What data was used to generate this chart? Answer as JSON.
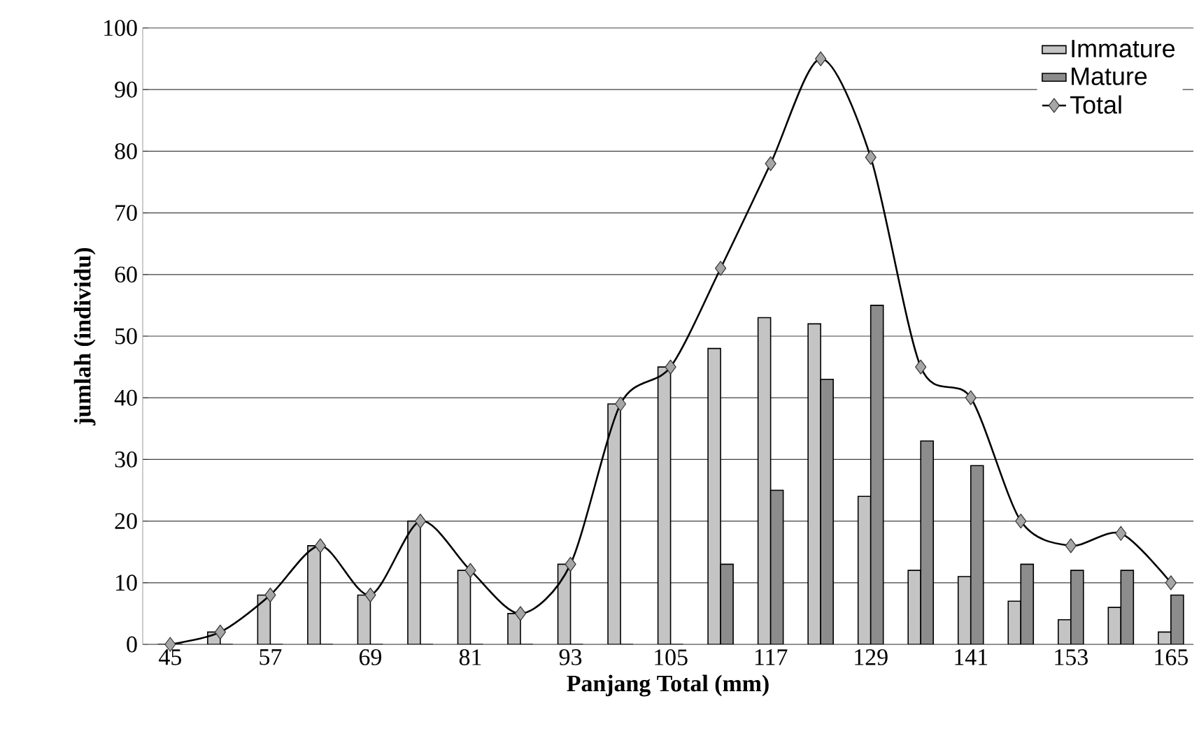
{
  "chart_data": {
    "type": "bar",
    "xlabel": "Panjang Total (mm)",
    "ylabel": "jumlah (individu)",
    "categories": [
      "45",
      null,
      "57",
      null,
      "69",
      null,
      "81",
      null,
      "93",
      null,
      "105",
      null,
      "117",
      null,
      "129",
      null,
      "141",
      null,
      "153",
      null,
      "165"
    ],
    "series": [
      {
        "name": "Immature",
        "color": "#c4c4c4",
        "values": [
          0,
          2,
          8,
          16,
          8,
          20,
          12,
          5,
          13,
          39,
          45,
          48,
          53,
          52,
          24,
          12,
          11,
          7,
          4,
          6,
          2
        ]
      },
      {
        "name": "Mature",
        "color": "#8c8c8c",
        "values": [
          0,
          0,
          0,
          0,
          0,
          0,
          0,
          0,
          0,
          0,
          0,
          13,
          25,
          43,
          55,
          33,
          29,
          13,
          12,
          12,
          8
        ]
      },
      {
        "name": "Total",
        "type": "line",
        "color": "#000000",
        "values": [
          0,
          2,
          8,
          16,
          8,
          20,
          12,
          5,
          13,
          39,
          45,
          61,
          78,
          95,
          79,
          45,
          40,
          20,
          16,
          18,
          10
        ]
      }
    ],
    "ylim": [
      0,
      100
    ],
    "yticks": [
      0,
      10,
      20,
      30,
      40,
      50,
      60,
      70,
      80,
      90,
      100
    ],
    "grid": "y",
    "legend": "top right",
    "marker": "diamond"
  }
}
